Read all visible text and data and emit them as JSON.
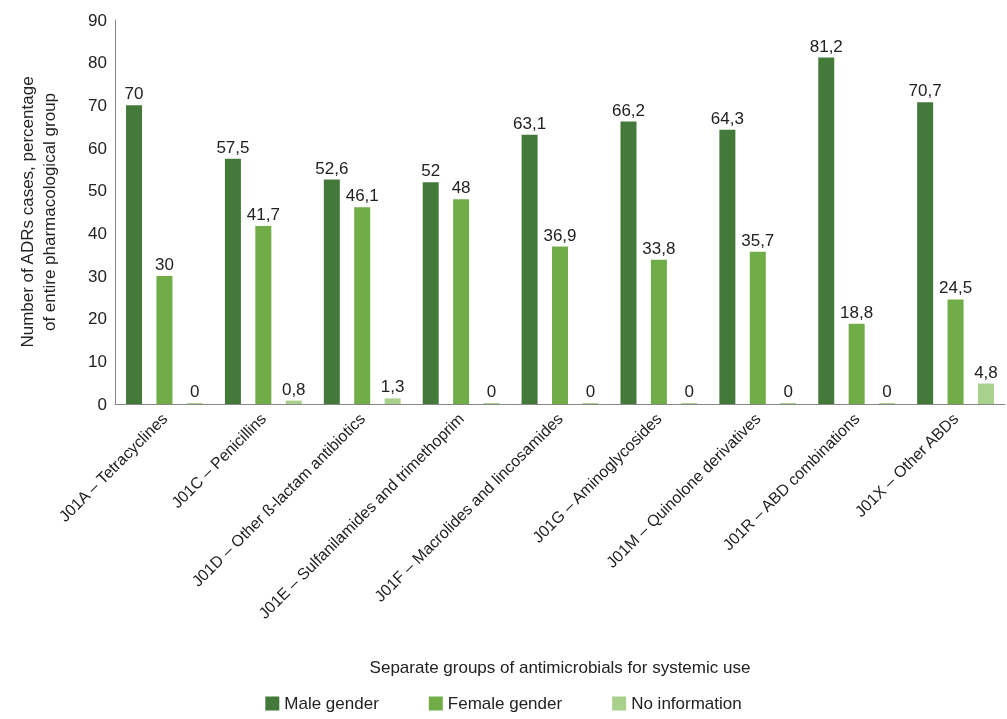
{
  "chart_data": {
    "type": "bar",
    "xlabel": "Separate groups of antimicrobials for systemic use",
    "ylabel": "Number of ADRs cases, percentage\nof entire pharmacological group",
    "categories": [
      "J01A – Tetracyclines",
      "J01C – Penicillins",
      "J01D – Other ß-lactam antibiotics",
      "J01E – Sulfanilamides and trimethoprim",
      "J01F – Macrolides and lincosamides",
      "J01G – Aminoglycosides",
      "J01M – Quinolone derivatives",
      "J01R – ABD combinations",
      "J01X – Other ABDs"
    ],
    "series": [
      {
        "name": "Male gender",
        "color": "#437a3a",
        "values": [
          70,
          57.5,
          52.6,
          52,
          63.1,
          66.2,
          64.3,
          81.2,
          70.7
        ],
        "value_labels": [
          "70",
          "57,5",
          "52,6",
          "52",
          "63,1",
          "66,2",
          "64,3",
          "81,2",
          "70,7"
        ]
      },
      {
        "name": "Female gender",
        "color": "#70ad47",
        "values": [
          30,
          41.7,
          46.1,
          48,
          36.9,
          33.8,
          35.7,
          18.8,
          24.5
        ],
        "value_labels": [
          "30",
          "41,7",
          "46,1",
          "48",
          "36,9",
          "33,8",
          "35,7",
          "18,8",
          "24,5"
        ]
      },
      {
        "name": "No information",
        "color": "#a9d18e",
        "values": [
          0,
          0.8,
          1.3,
          0,
          0,
          0,
          0,
          0,
          4.8
        ],
        "value_labels": [
          "0",
          "0,8",
          "1,3",
          "0",
          "0",
          "0",
          "0",
          "0",
          "4,8"
        ]
      }
    ],
    "ylim": [
      0,
      90
    ],
    "yticks": [
      0,
      10,
      20,
      30,
      40,
      50,
      60,
      70,
      80,
      90
    ],
    "grid": false,
    "legend": "bottom"
  }
}
